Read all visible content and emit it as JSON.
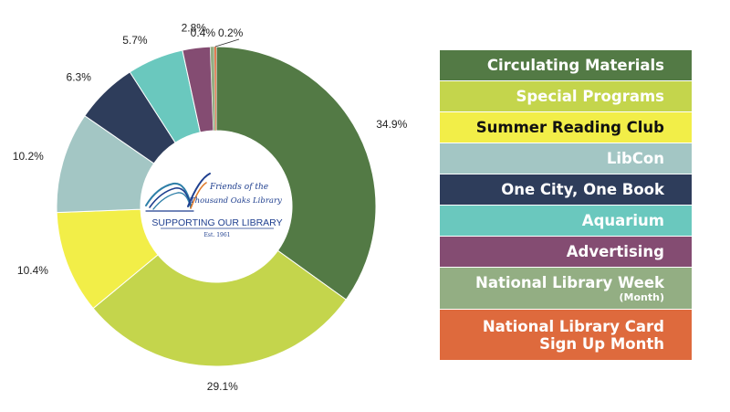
{
  "chart_data": {
    "type": "pie",
    "donut": true,
    "categories": [
      "Circulating Materials",
      "Special Programs",
      "Summer Reading Club",
      "LibCon",
      "One City, One Book",
      "Aquarium",
      "Advertising",
      "National Library Week (Month)",
      "National Library Card Sign Up Month"
    ],
    "values": [
      34.9,
      29.1,
      10.4,
      10.2,
      6.3,
      5.7,
      2.8,
      0.4,
      0.2
    ],
    "data_labels": [
      "34.9%",
      "29.1%",
      "10.4%",
      "10.2%",
      "6.3%",
      "5.7%",
      "2.8%",
      "0.4%",
      "0.2%"
    ],
    "colors": [
      "#537a45",
      "#c4d54c",
      "#f2ee48",
      "#a3c6c4",
      "#2e3d5b",
      "#6ac8be",
      "#844c72",
      "#93ae83",
      "#de6a3d"
    ],
    "legend_placement": "right",
    "title": ""
  },
  "legend": [
    {
      "lines": [
        "Circulating Materials"
      ],
      "sub": "",
      "color": "#537a45",
      "text_color": "#ffffff"
    },
    {
      "lines": [
        "Special Programs"
      ],
      "sub": "",
      "color": "#c4d54c",
      "text_color": "#ffffff"
    },
    {
      "lines": [
        "Summer Reading Club"
      ],
      "sub": "",
      "color": "#f2ee48",
      "text_color": "#111111"
    },
    {
      "lines": [
        "LibCon"
      ],
      "sub": "",
      "color": "#a3c6c4",
      "text_color": "#ffffff"
    },
    {
      "lines": [
        "One City, One Book"
      ],
      "sub": "",
      "color": "#2e3d5b",
      "text_color": "#ffffff"
    },
    {
      "lines": [
        "Aquarium"
      ],
      "sub": "",
      "color": "#6ac8be",
      "text_color": "#ffffff"
    },
    {
      "lines": [
        "Advertising"
      ],
      "sub": "",
      "color": "#844c72",
      "text_color": "#ffffff"
    },
    {
      "lines": [
        "National Library Week"
      ],
      "sub": "(Month)",
      "color": "#93ae83",
      "text_color": "#ffffff"
    },
    {
      "lines": [
        "National Library Card",
        "Sign Up Month"
      ],
      "sub": "",
      "color": "#de6a3d",
      "text_color": "#ffffff"
    }
  ],
  "logo": {
    "line1": "Friends of the",
    "line2": "Thousand Oaks Library",
    "tagline": "SUPPORTING OUR LIBRARY",
    "established": "Est. 1961",
    "colors": {
      "navy": "#1f3f8f",
      "teal": "#2e7fa8",
      "orange": "#e07b2b"
    }
  }
}
